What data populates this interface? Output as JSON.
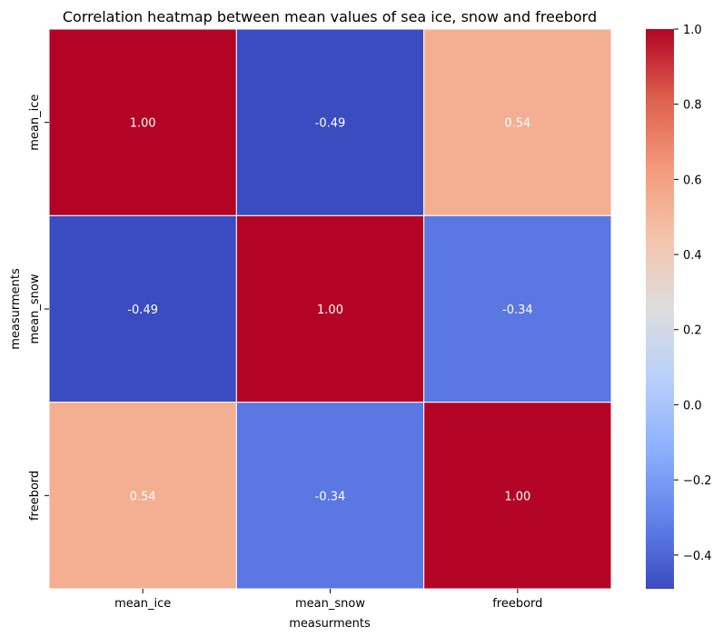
{
  "chart_data": {
    "type": "heatmap",
    "title": "Correlation heatmap between mean values of sea ice, snow and freebord",
    "xlabel": "measurments",
    "ylabel": "measurments",
    "x_categories": [
      "mean_ice",
      "mean_snow",
      "freebord"
    ],
    "y_categories": [
      "mean_ice",
      "mean_snow",
      "freebord"
    ],
    "values": [
      [
        1.0,
        -0.49,
        0.54
      ],
      [
        -0.49,
        1.0,
        -0.34
      ],
      [
        0.54,
        -0.34,
        1.0
      ]
    ],
    "value_labels": [
      [
        "1.00",
        "-0.49",
        "0.54"
      ],
      [
        "-0.49",
        "1.00",
        "-0.34"
      ],
      [
        "0.54",
        "-0.34",
        "1.00"
      ]
    ],
    "colormap": "coolwarm",
    "colorbar": {
      "range": [
        -0.49,
        1.0
      ],
      "ticks": [
        -0.4,
        -0.2,
        0.0,
        0.2,
        0.4,
        0.6,
        0.8,
        1.0
      ],
      "tick_labels": [
        "−0.4",
        "−0.2",
        "0.0",
        "0.2",
        "0.4",
        "0.6",
        "0.8",
        "1.0"
      ]
    },
    "grid": false,
    "cell_border_color": "#ffffff"
  }
}
